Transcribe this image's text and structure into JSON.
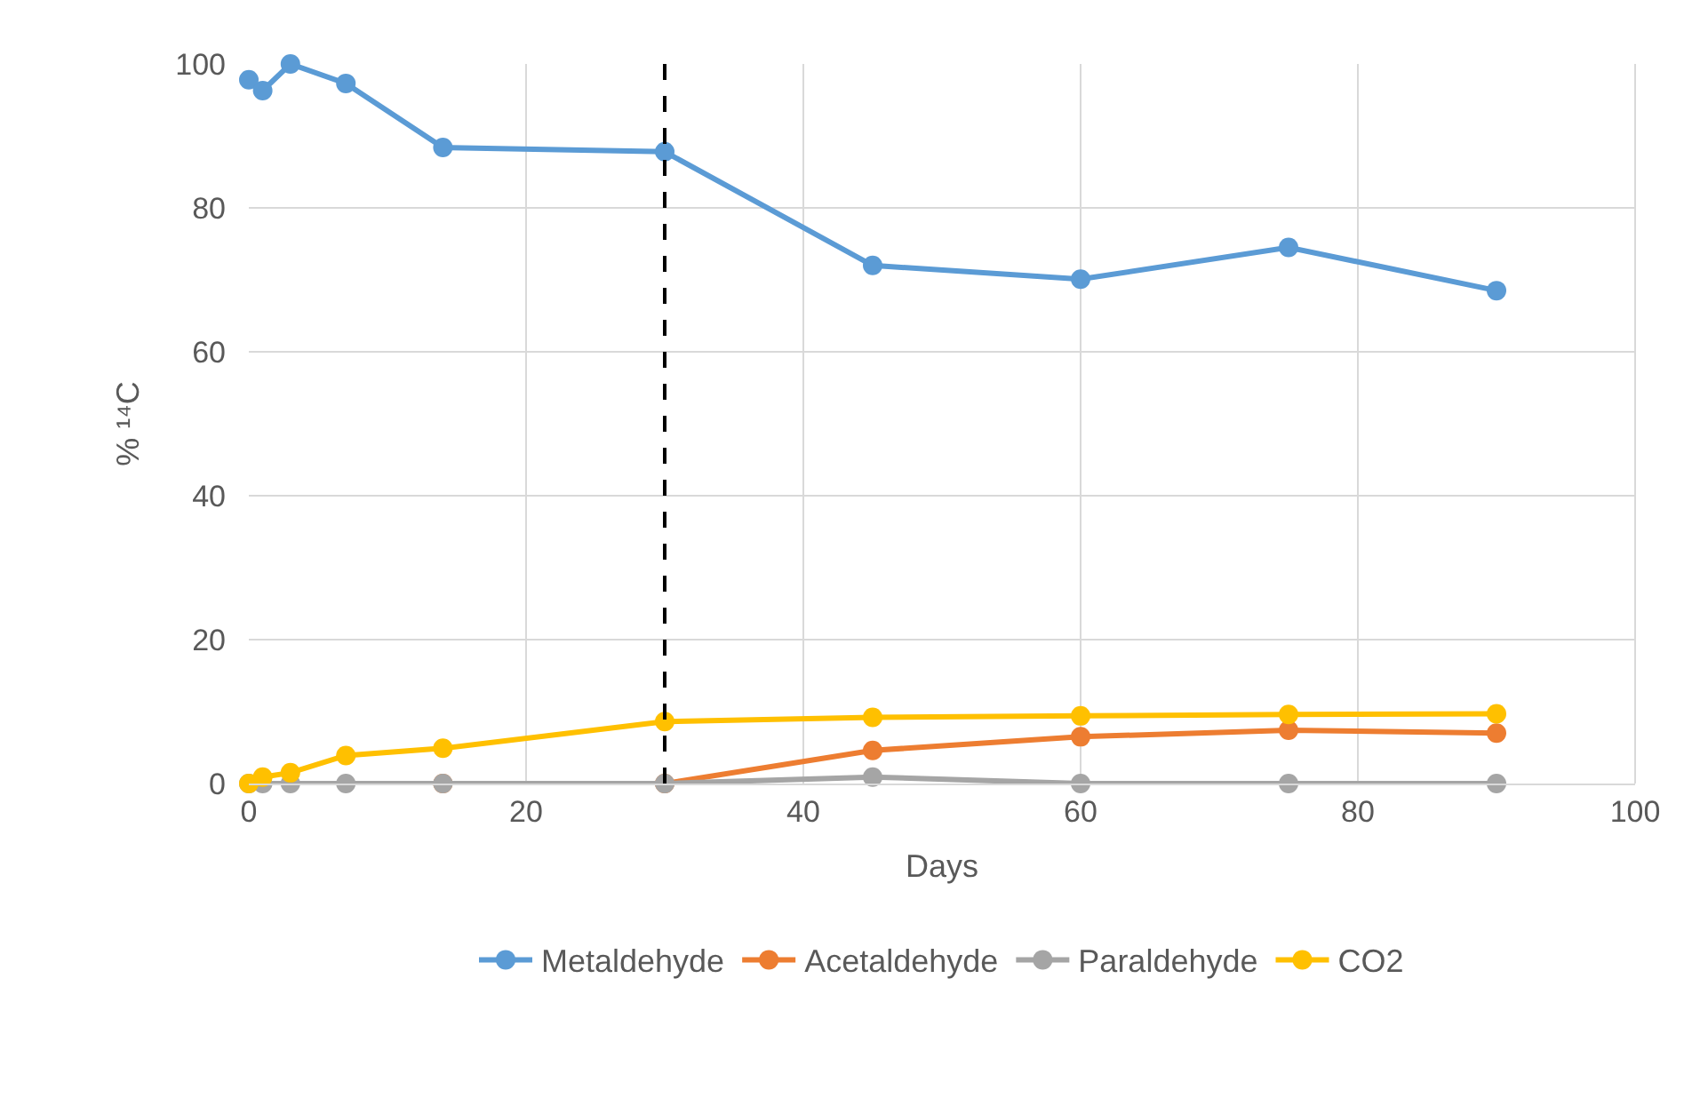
{
  "chart_data": {
    "type": "line",
    "xlabel": "Days",
    "ylabel": "% ¹⁴C",
    "x": [
      0,
      1,
      3,
      7,
      14,
      30,
      45,
      60,
      75,
      90
    ],
    "series": [
      {
        "name": "Metaldehyde",
        "color": "#5b9bd5",
        "values": [
          97.8,
          96.3,
          100,
          97.3,
          88.4,
          87.8,
          72,
          70.1,
          74.5,
          68.5
        ]
      },
      {
        "name": "Acetaldehyde",
        "color": "#ed7d31",
        "values": [
          null,
          null,
          null,
          null,
          0,
          0,
          4.6,
          6.5,
          7.4,
          7
        ]
      },
      {
        "name": "Paraldehyde",
        "color": "#a5a5a5",
        "values": [
          0,
          0,
          0,
          0,
          0,
          0,
          0.9,
          0,
          0,
          0
        ]
      },
      {
        "name": "CO2",
        "color": "#ffc000",
        "values": [
          0,
          0.9,
          1.5,
          3.9,
          4.9,
          8.6,
          9.2,
          9.4,
          9.6,
          9.7
        ]
      }
    ],
    "xlim": [
      0,
      100
    ],
    "xticks": [
      0,
      20,
      40,
      60,
      80,
      100
    ],
    "ylim": [
      0,
      100
    ],
    "yticks": [
      0,
      20,
      40,
      60,
      80,
      100
    ],
    "ref_lines": [
      {
        "axis": "x",
        "value": 30,
        "color": "#000000",
        "line_style": "dashed"
      }
    ],
    "grid": true,
    "legend": "bottom",
    "marker": "circle",
    "line_style": "solid"
  }
}
